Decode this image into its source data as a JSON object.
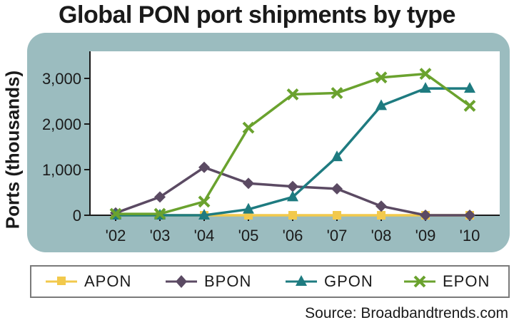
{
  "chart_data": {
    "type": "line",
    "title": "Global PON port shipments by type",
    "ylabel": "Ports (thousands)",
    "xlabel": "",
    "categories": [
      "'02",
      "'03",
      "'04",
      "'05",
      "'06",
      "'07",
      "'08",
      "'09",
      "'10"
    ],
    "ylim": [
      0,
      3200
    ],
    "yticks": [
      0,
      1000,
      2000,
      3000
    ],
    "ytick_labels": [
      "0",
      "1,000",
      "2,000",
      "3,000"
    ],
    "grid": false,
    "legend_position": "bottom",
    "series": [
      {
        "name": "APON",
        "marker": "square",
        "color": "#f2c94c",
        "values": [
          0,
          0,
          0,
          0,
          0,
          0,
          0,
          0,
          0
        ]
      },
      {
        "name": "BPON",
        "marker": "diamond",
        "color": "#5b4a63",
        "values": [
          50,
          400,
          1050,
          700,
          630,
          580,
          200,
          0,
          0
        ]
      },
      {
        "name": "GPON",
        "marker": "triangle",
        "color": "#1e7b80",
        "values": [
          0,
          0,
          0,
          130,
          400,
          1280,
          2400,
          2780,
          2780
        ]
      },
      {
        "name": "EPON",
        "marker": "x",
        "color": "#6aa22e",
        "values": [
          30,
          30,
          300,
          1920,
          2650,
          2680,
          3020,
          3100,
          2400
        ]
      }
    ]
  },
  "source": "Source: Broadbandtrends.com"
}
